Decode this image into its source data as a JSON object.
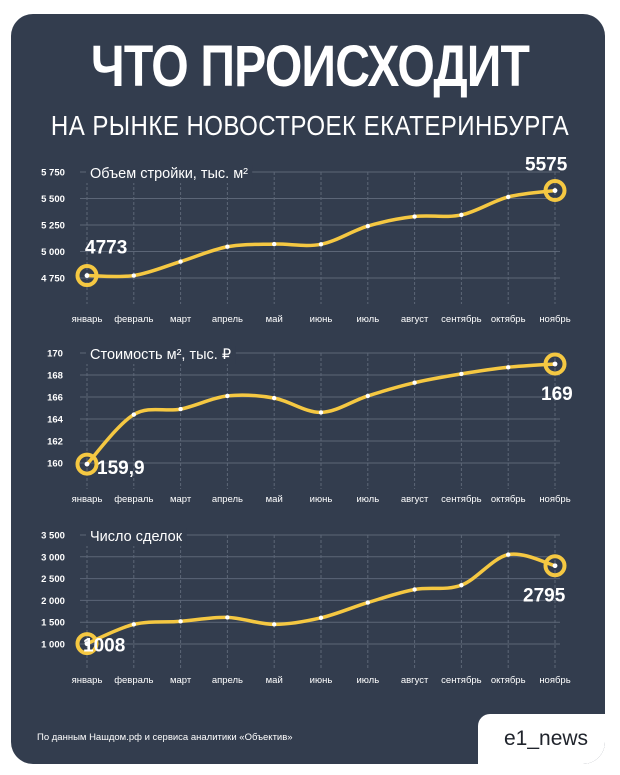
{
  "header": {
    "title": "ЧТО ПРОИСХОДИТ",
    "subtitle": "НА РЫНКЕ НОВОСТРОЕК ЕКАТЕРИНБУРГА"
  },
  "footer": {
    "note": "По данным Нашдом.рф и сервиса аналитики «Объектив»",
    "brand": "e1_news"
  },
  "colors": {
    "background": "#333d4e",
    "line": "#f5c842",
    "text": "#ffffff",
    "grid": "#5c6677"
  },
  "chart_data": [
    {
      "type": "line",
      "title": "Объем стройки, тыс. м²",
      "categories": [
        "январь",
        "февраль",
        "март",
        "апрель",
        "май",
        "июнь",
        "июль",
        "август",
        "сентябрь",
        "октябрь",
        "ноябрь"
      ],
      "values": [
        4773,
        4773,
        4905,
        5045,
        5070,
        5068,
        5240,
        5330,
        5345,
        5515,
        5575
      ],
      "yticks": [
        "5 750",
        "5 500",
        "5 250",
        "5 000",
        "4 750"
      ],
      "ytick_values": [
        5750,
        5500,
        5250,
        5000,
        4750
      ],
      "ylim": [
        4750,
        5750
      ],
      "start_label": "4773",
      "end_label": "5575",
      "grid": true
    },
    {
      "type": "line",
      "title": "Стоимость м², тыс. ₽",
      "categories": [
        "январь",
        "февраль",
        "март",
        "апрель",
        "май",
        "июнь",
        "июль",
        "август",
        "сентябрь",
        "октябрь",
        "ноябрь"
      ],
      "values": [
        159.9,
        164.4,
        164.9,
        166.1,
        165.9,
        164.6,
        166.1,
        167.3,
        168.1,
        168.7,
        169
      ],
      "yticks": [
        "170",
        "168",
        "166",
        "164",
        "162",
        "160"
      ],
      "ytick_values": [
        170,
        168,
        166,
        164,
        162,
        160
      ],
      "ylim": [
        160,
        170
      ],
      "start_label": "159,9",
      "end_label": "169",
      "grid": true
    },
    {
      "type": "line",
      "title": "Число сделок",
      "categories": [
        "январь",
        "февраль",
        "март",
        "апрель",
        "май",
        "июнь",
        "июль",
        "август",
        "сентябрь",
        "октябрь",
        "ноябрь"
      ],
      "values": [
        1008,
        1450,
        1520,
        1610,
        1450,
        1600,
        1950,
        2250,
        2350,
        3050,
        2795
      ],
      "yticks": [
        "3 500",
        "3 000",
        "2 500",
        "2 000",
        "1 500",
        "1 000"
      ],
      "ytick_values": [
        3500,
        3000,
        2500,
        2000,
        1500,
        1000
      ],
      "ylim": [
        1000,
        3500
      ],
      "start_label": "1008",
      "end_label": "2795",
      "grid": true
    }
  ]
}
